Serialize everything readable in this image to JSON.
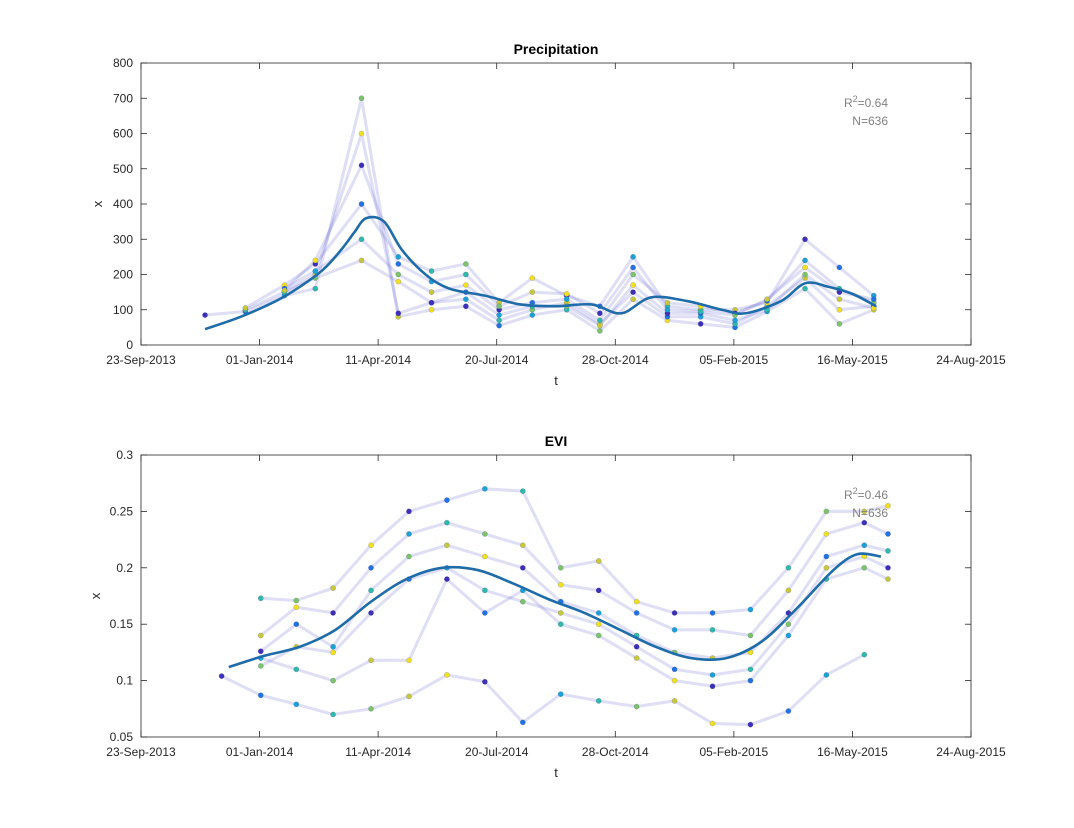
{
  "colors": {
    "fit_line": "#1f6ca8",
    "trajectory": "#6a6ad0",
    "annotation": "#808080",
    "axis": "#262626",
    "point_palette": [
      "#3d2fb8",
      "#1f72e0",
      "#1aa2d6",
      "#30b8a8",
      "#7cc36a",
      "#c8c83a",
      "#f0e020"
    ]
  },
  "chart_data": [
    {
      "type": "scatter",
      "title": "Precipitation",
      "xlabel": "t",
      "ylabel": "x",
      "x_ticks": [
        "23-Sep-2013",
        "01-Jan-2014",
        "11-Apr-2014",
        "20-Jul-2014",
        "28-Oct-2014",
        "05-Feb-2015",
        "16-May-2015",
        "24-Aug-2015"
      ],
      "xlim": [
        "2013-09-23",
        "2015-08-24"
      ],
      "ylim": [
        0,
        800
      ],
      "y_ticks": [
        "0",
        "100",
        "200",
        "300",
        "400",
        "500",
        "600",
        "700",
        "800"
      ],
      "annotation": {
        "r2_label": "R",
        "r2_sup": "2",
        "r2_value": "=0.64",
        "n": "N=636"
      },
      "fit_line": {
        "dates": [
          "2013-11-16",
          "2013-12-16",
          "2014-01-15",
          "2014-02-04",
          "2014-02-24",
          "2014-03-12",
          "2014-03-22",
          "2014-04-01",
          "2014-04-16",
          "2014-05-01",
          "2014-05-21",
          "2014-06-10",
          "2014-07-10",
          "2014-08-09",
          "2014-09-08",
          "2014-10-08",
          "2014-11-02",
          "2014-11-27",
          "2014-12-27",
          "2015-01-26",
          "2015-02-15",
          "2015-03-17",
          "2015-04-06",
          "2015-04-26",
          "2015-05-16",
          "2015-06-05"
        ],
        "values": [
          45,
          80,
          125,
          165,
          215,
          275,
          320,
          360,
          350,
          270,
          200,
          160,
          140,
          115,
          110,
          115,
          90,
          135,
          125,
          100,
          90,
          125,
          175,
          165,
          145,
          110
        ]
      },
      "sample_dates": [
        "2013-11-16",
        "2013-12-20",
        "2014-01-22",
        "2014-02-17",
        "2014-03-28",
        "2014-04-28",
        "2014-05-26",
        "2014-06-24",
        "2014-07-22",
        "2014-08-19",
        "2014-09-17",
        "2014-10-15",
        "2014-11-12",
        "2014-12-11",
        "2015-01-08",
        "2015-02-06",
        "2015-03-05",
        "2015-04-06",
        "2015-05-05",
        "2015-06-03"
      ],
      "series": [
        {
          "values": [
            85,
            95,
            140,
            160,
            700,
            80,
            100,
            110,
            55,
            85,
            100,
            40,
            130,
            70,
            60,
            50,
            95,
            160,
            60,
            100
          ]
        },
        {
          "values": [
            null,
            100,
            150,
            200,
            600,
            90,
            120,
            130,
            70,
            100,
            120,
            60,
            150,
            80,
            80,
            60,
            110,
            190,
            100,
            110
          ]
        },
        {
          "values": [
            null,
            105,
            170,
            230,
            400,
            250,
            210,
            230,
            120,
            190,
            140,
            110,
            250,
            110,
            100,
            100,
            120,
            300,
            220,
            140
          ]
        },
        {
          "values": [
            null,
            null,
            160,
            210,
            300,
            200,
            150,
            170,
            100,
            120,
            130,
            70,
            200,
            120,
            110,
            90,
            125,
            240,
            160,
            120
          ]
        },
        {
          "values": [
            null,
            null,
            150,
            190,
            240,
            180,
            120,
            150,
            85,
            110,
            110,
            55,
            170,
            90,
            90,
            70,
            100,
            200,
            130,
            105
          ]
        },
        {
          "values": [
            null,
            null,
            155,
            240,
            510,
            230,
            180,
            200,
            110,
            150,
            145,
            90,
            220,
            100,
            95,
            85,
            130,
            220,
            150,
            130
          ]
        }
      ]
    },
    {
      "type": "scatter",
      "title": "EVI",
      "xlabel": "t",
      "ylabel": "x",
      "x_ticks": [
        "23-Sep-2013",
        "01-Jan-2014",
        "11-Apr-2014",
        "20-Jul-2014",
        "28-Oct-2014",
        "05-Feb-2015",
        "16-May-2015",
        "24-Aug-2015"
      ],
      "xlim": [
        "2013-09-23",
        "2015-08-24"
      ],
      "ylim": [
        0.05,
        0.3
      ],
      "y_ticks": [
        "0.05",
        "0.1",
        "0.15",
        "0.2",
        "0.25",
        "0.3"
      ],
      "annotation": {
        "r2_label": "R",
        "r2_sup": "2",
        "r2_value": "=0.46",
        "n": "N=636"
      },
      "fit_line": {
        "dates": [
          "2013-12-06",
          "2014-01-05",
          "2014-02-04",
          "2014-03-06",
          "2014-04-05",
          "2014-05-05",
          "2014-06-04",
          "2014-07-04",
          "2014-08-03",
          "2014-09-02",
          "2014-10-02",
          "2014-11-01",
          "2014-12-01",
          "2014-12-31",
          "2015-01-30",
          "2015-03-01",
          "2015-03-31",
          "2015-04-30",
          "2015-05-20",
          "2015-06-09"
        ],
        "values": [
          0.112,
          0.122,
          0.13,
          0.145,
          0.17,
          0.19,
          0.2,
          0.198,
          0.186,
          0.172,
          0.16,
          0.145,
          0.13,
          0.12,
          0.12,
          0.135,
          0.165,
          0.198,
          0.212,
          0.21
        ]
      },
      "sample_dates": [
        "2013-11-30",
        "2014-01-02",
        "2014-02-01",
        "2014-03-04",
        "2014-04-05",
        "2014-05-07",
        "2014-06-08",
        "2014-07-10",
        "2014-08-11",
        "2014-09-12",
        "2014-10-14",
        "2014-11-15",
        "2014-12-17",
        "2015-01-18",
        "2015-02-19",
        "2015-03-23",
        "2015-04-24",
        "2015-05-26",
        "2015-06-15"
      ],
      "series": [
        {
          "values": [
            0.104,
            0.087,
            0.079,
            0.07,
            0.075,
            0.086,
            0.105,
            0.099,
            0.063,
            0.088,
            0.082,
            0.077,
            0.082,
            0.062,
            0.061,
            0.073,
            0.105,
            0.123,
            null
          ]
        },
        {
          "values": [
            null,
            0.173,
            0.171,
            0.182,
            0.22,
            0.25,
            0.26,
            0.27,
            0.268,
            0.2,
            0.206,
            0.17,
            0.16,
            0.16,
            0.163,
            0.2,
            0.25,
            0.25,
            0.255
          ]
        },
        {
          "values": [
            null,
            0.14,
            0.165,
            0.16,
            0.2,
            0.23,
            0.24,
            0.23,
            0.22,
            0.185,
            0.18,
            0.16,
            0.145,
            0.145,
            0.14,
            0.18,
            0.23,
            0.24,
            0.23
          ]
        },
        {
          "values": [
            null,
            0.126,
            0.15,
            0.13,
            0.18,
            0.21,
            0.22,
            0.21,
            0.2,
            0.17,
            0.16,
            0.14,
            0.125,
            0.12,
            0.125,
            0.16,
            0.21,
            0.22,
            0.215
          ]
        },
        {
          "values": [
            null,
            0.12,
            0.11,
            0.1,
            0.118,
            0.118,
            0.19,
            0.16,
            0.18,
            0.15,
            0.14,
            0.12,
            0.1,
            0.095,
            0.1,
            0.14,
            0.19,
            0.2,
            0.19
          ]
        },
        {
          "values": [
            null,
            0.113,
            0.13,
            0.125,
            0.16,
            0.19,
            0.2,
            0.18,
            0.17,
            0.16,
            0.15,
            0.13,
            0.11,
            0.105,
            0.11,
            0.15,
            0.2,
            0.21,
            0.2
          ]
        }
      ]
    }
  ]
}
